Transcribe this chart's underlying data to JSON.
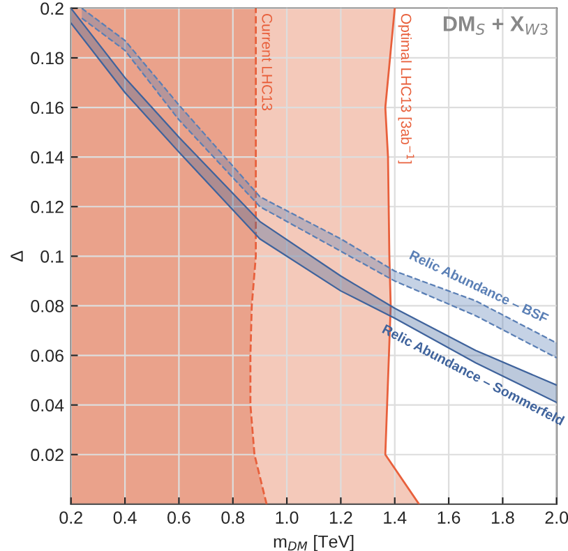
{
  "chart_data": {
    "type": "line",
    "title": "DM$_{S}$ + X$_{W3}$",
    "xlabel": "m$_{DM}$ [TeV]",
    "ylabel": "Δ",
    "xlim": [
      0.2,
      2.0
    ],
    "ylim": [
      0,
      0.2
    ],
    "xticks": [
      0.2,
      0.4,
      0.6,
      0.8,
      {
        "value": 1.0,
        "label": "1.0"
      },
      1.2,
      1.4,
      1.6,
      1.8,
      {
        "value": 2.0,
        "label": "2.0"
      }
    ],
    "yticks": [
      0.02,
      0.04,
      0.06,
      0.08,
      0.1,
      0.12,
      0.14,
      0.16,
      0.18,
      0.2
    ],
    "grid": true,
    "legend": false,
    "series": [
      {
        "name": "Optimal LHC13 [3ab$^{−1}$]",
        "color": "#e8603c",
        "line_style": "solid",
        "x": [
          1.49,
          1.365,
          1.385,
          1.38,
          1.375,
          1.365,
          1.4
        ],
        "values": [
          0,
          0.02,
          0.08,
          0.1,
          0.14,
          0.16,
          0.2
        ]
      },
      {
        "name": "Current LHC13",
        "color": "#e8603c",
        "line_style": "dashed",
        "x": [
          0.925,
          0.88,
          0.865,
          0.865,
          0.87,
          0.885,
          0.885
        ],
        "values": [
          0,
          0.02,
          0.04,
          0.06,
          0.08,
          0.1,
          0.2
        ]
      },
      {
        "name": "Relic Abundance – BSF",
        "type": "line",
        "color": "#5a7fb5",
        "line_style": "dashed",
        "x": [
          0.24,
          0.4,
          0.6,
          0.9,
          1.2,
          1.4,
          1.7,
          2.0
        ],
        "lower": [
          0.196,
          0.183,
          0.155,
          0.12,
          0.102,
          0.09,
          0.076,
          0.059
        ],
        "upper": [
          0.2,
          0.187,
          0.161,
          0.124,
          0.107,
          0.094,
          0.082,
          0.065
        ],
        "values": [
          0.196,
          0.183,
          0.155,
          0.12,
          0.102,
          0.09,
          0.076,
          0.059
        ]
      },
      {
        "name": "Relic Abundance – Sommerfeld",
        "type": "line",
        "color": "#3f639c",
        "line_style": "solid",
        "x": [
          0.2,
          0.4,
          0.6,
          0.9,
          1.2,
          1.4,
          1.7,
          2.0
        ],
        "lower": [
          0.194,
          0.166,
          0.142,
          0.107,
          0.086,
          0.075,
          0.057,
          0.041
        ],
        "upper": [
          0.2,
          0.172,
          0.148,
          0.114,
          0.092,
          0.079,
          0.062,
          0.048
        ],
        "values": [
          0.194,
          0.166,
          0.142,
          0.107,
          0.086,
          0.075,
          0.057,
          0.041
        ]
      }
    ]
  }
}
